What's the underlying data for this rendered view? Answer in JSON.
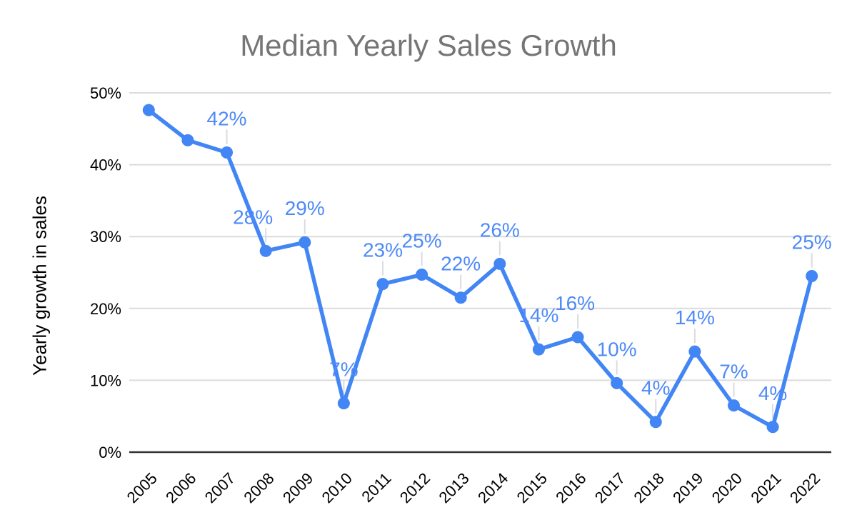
{
  "chart_data": {
    "type": "line",
    "title": "Median Yearly Sales Growth",
    "xlabel": "",
    "ylabel": "Yearly growth in sales",
    "categories": [
      "2005",
      "2006",
      "2007",
      "2008",
      "2009",
      "2010",
      "2011",
      "2012",
      "2013",
      "2014",
      "2015",
      "2016",
      "2017",
      "2018",
      "2019",
      "2020",
      "2021",
      "2022"
    ],
    "values": [
      47.6,
      43.4,
      41.7,
      28.0,
      29.2,
      6.8,
      23.4,
      24.7,
      21.5,
      26.2,
      14.3,
      16.0,
      9.6,
      4.2,
      14.0,
      6.5,
      3.5,
      24.5
    ],
    "point_labels": [
      "",
      "",
      "42%",
      "28%",
      "29%",
      "7%",
      "23%",
      "25%",
      "22%",
      "26%",
      "14%",
      "16%",
      "10%",
      "4%",
      "14%",
      "7%",
      "4%",
      "25%"
    ],
    "point_label_dx": [
      0,
      0,
      0,
      -18,
      0,
      0,
      0,
      0,
      0,
      0,
      0,
      -4,
      0,
      0,
      0,
      0,
      0,
      0
    ],
    "ylim": [
      0,
      50
    ],
    "ytick_values": [
      0,
      10,
      20,
      30,
      40,
      50
    ],
    "ytick_labels": [
      "0%",
      "10%",
      "20%",
      "30%",
      "40%",
      "50%"
    ],
    "grid": "horizontal-only",
    "legend": "none",
    "colors": {
      "series": "#4285f4",
      "point_label": "#4e8af8",
      "title": "#757575",
      "axis_text": "#000000",
      "gridline": "#dcdcdc",
      "baseline": "#333333",
      "callout": "#dadce0",
      "background": "#ffffff"
    }
  }
}
